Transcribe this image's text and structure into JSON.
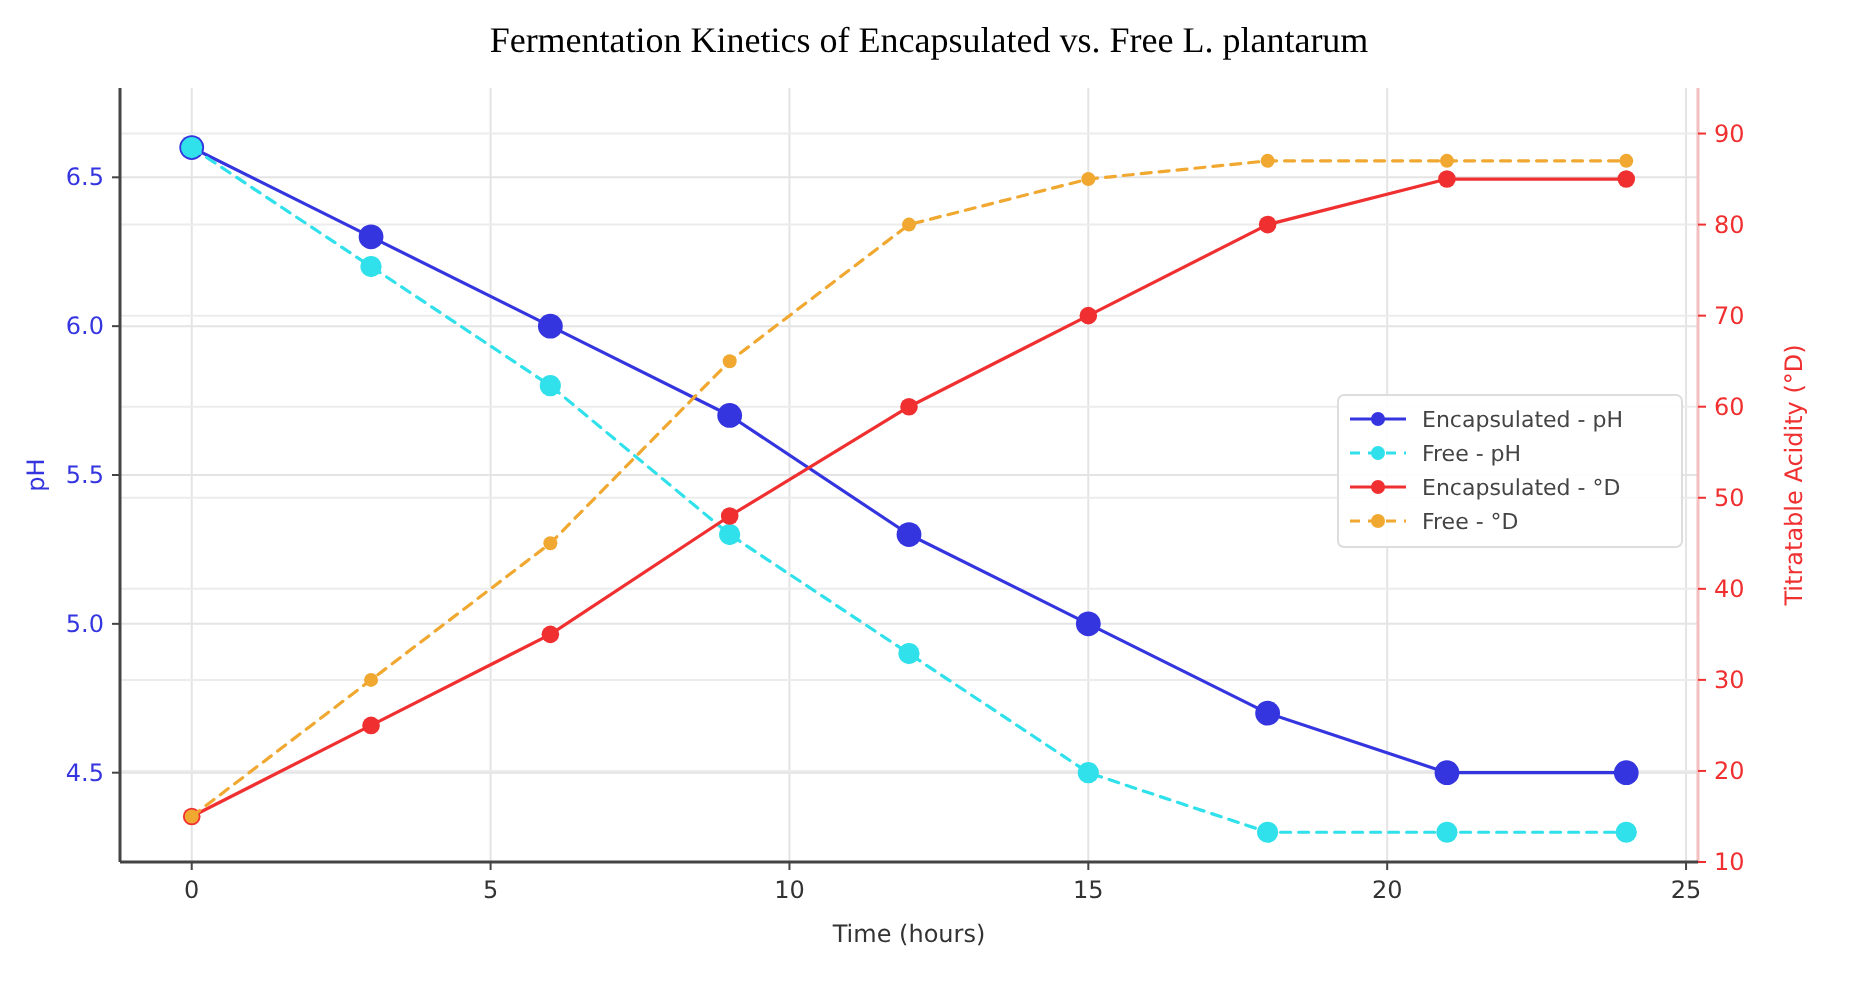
{
  "chart_data": {
    "type": "line",
    "title": "Fermentation Kinetics of Encapsulated vs. Free L. plantarum",
    "xlabel": "Time (hours)",
    "ylabel": "pH",
    "y2label": "Titratable Acidity (°D)",
    "x": [
      0,
      3,
      6,
      9,
      12,
      15,
      18,
      21,
      24
    ],
    "xlim": [
      -1.2,
      25.2
    ],
    "xticks": [
      0,
      5,
      10,
      15,
      20,
      25
    ],
    "ylim": [
      4.2,
      6.8
    ],
    "yticks": [
      4.5,
      {
        "value": 5,
        "label": "5.0"
      },
      5.5,
      {
        "value": 6,
        "label": "6.0"
      },
      6.5
    ],
    "y2lim": [
      10,
      95
    ],
    "y2ticks": [
      10,
      20,
      30,
      40,
      50,
      60,
      70,
      80,
      90
    ],
    "grid": true,
    "legend": "right",
    "marker": "circle",
    "series": [
      {
        "name": "Encapsulated - pH",
        "color": "#3535e0",
        "values": [
          6.6,
          6.3,
          6.0,
          5.7,
          5.3,
          5.0,
          4.7,
          4.5,
          4.5
        ],
        "line_style": "solid"
      },
      {
        "name": "Free - pH",
        "color": "#30e0ea",
        "values": [
          6.6,
          6.2,
          5.8,
          5.3,
          4.9,
          4.5,
          4.3,
          4.3,
          4.3
        ],
        "line_style": "dashed"
      },
      {
        "name": "Encapsulated - °D",
        "color": "#f03030",
        "values": [
          15,
          25,
          35,
          48,
          60,
          70,
          80,
          85,
          85
        ],
        "line_style": "solid",
        "axis": "y2"
      },
      {
        "name": "Free - °D",
        "color": "#f0a830",
        "values": [
          15,
          30,
          45,
          65,
          80,
          85,
          87,
          87,
          87
        ],
        "line_style": "dashed",
        "axis": "y2"
      }
    ]
  }
}
